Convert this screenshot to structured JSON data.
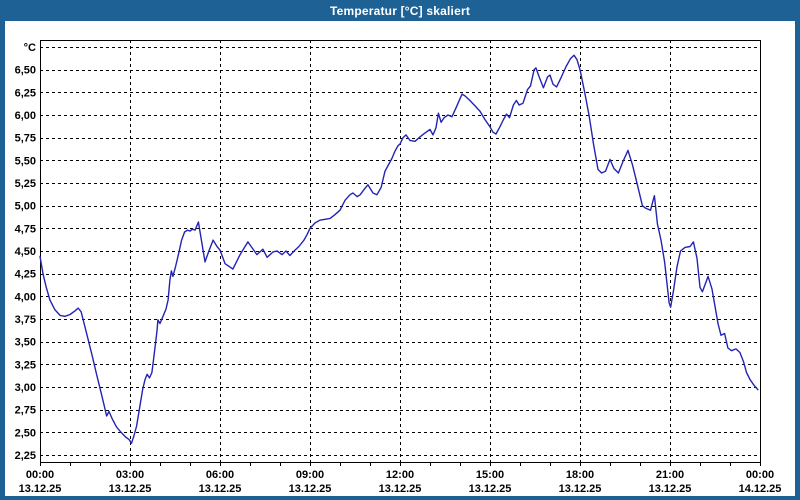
{
  "window": {
    "title": "Temperatur [°C] skaliert"
  },
  "colors": {
    "titlebar_bg": "#1e6295",
    "titlebar_text": "#ffffff",
    "window_border": "#1e6295",
    "plot_bg": "#ffffff",
    "grid": "#000000",
    "axis": "#000000",
    "label_text": "#000000",
    "series_line": "#2424b4"
  },
  "chart_data": {
    "type": "line",
    "title": "Temperatur [°C] skaliert",
    "grid": "dashed",
    "legend": "none",
    "y_axis": {
      "unit_label": "°C",
      "min": 2.25,
      "max": 6.75,
      "step": 0.25,
      "decimal_style": "comma",
      "tick_labels": [
        "6,50",
        "6,25",
        "6,00",
        "5,75",
        "5,50",
        "5,25",
        "5,00",
        "4,75",
        "4,50",
        "4,25",
        "4,00",
        "3,75",
        "3,50",
        "3,25",
        "3,00",
        "2,75",
        "2,50",
        "2,25"
      ]
    },
    "x_axis": {
      "span_hours": 24,
      "major_step_hours": 3,
      "minor_step_hours": 1,
      "ticks": [
        {
          "time": "00:00",
          "date": "13.12.25"
        },
        {
          "time": "03:00",
          "date": "13.12.25"
        },
        {
          "time": "06:00",
          "date": "13.12.25"
        },
        {
          "time": "09:00",
          "date": "13.12.25"
        },
        {
          "time": "12:00",
          "date": "13.12.25"
        },
        {
          "time": "15:00",
          "date": "13.12.25"
        },
        {
          "time": "18:00",
          "date": "13.12.25"
        },
        {
          "time": "21:00",
          "date": "13.12.25"
        },
        {
          "time": "00:00",
          "date": "14.12.25"
        }
      ]
    },
    "series": [
      {
        "name": "Temperatur",
        "color": "#2424b4",
        "points": [
          [
            0,
            4.44
          ],
          [
            0.1,
            4.25
          ],
          [
            0.2,
            4.11
          ],
          [
            0.33,
            3.96
          ],
          [
            0.5,
            3.85
          ],
          [
            0.67,
            3.79
          ],
          [
            0.83,
            3.78
          ],
          [
            1.0,
            3.8
          ],
          [
            1.17,
            3.84
          ],
          [
            1.27,
            3.87
          ],
          [
            1.37,
            3.83
          ],
          [
            1.47,
            3.7
          ],
          [
            1.6,
            3.53
          ],
          [
            1.75,
            3.33
          ],
          [
            1.9,
            3.12
          ],
          [
            2.05,
            2.92
          ],
          [
            2.15,
            2.78
          ],
          [
            2.22,
            2.68
          ],
          [
            2.3,
            2.73
          ],
          [
            2.42,
            2.64
          ],
          [
            2.55,
            2.56
          ],
          [
            2.7,
            2.5
          ],
          [
            2.85,
            2.45
          ],
          [
            2.97,
            2.42
          ],
          [
            3.05,
            2.38
          ],
          [
            3.13,
            2.46
          ],
          [
            3.22,
            2.57
          ],
          [
            3.32,
            2.77
          ],
          [
            3.42,
            2.97
          ],
          [
            3.5,
            3.08
          ],
          [
            3.57,
            3.14
          ],
          [
            3.65,
            3.1
          ],
          [
            3.73,
            3.16
          ],
          [
            3.78,
            3.29
          ],
          [
            3.85,
            3.48
          ],
          [
            3.9,
            3.62
          ],
          [
            3.93,
            3.74
          ],
          [
            4.0,
            3.7
          ],
          [
            4.1,
            3.78
          ],
          [
            4.2,
            3.86
          ],
          [
            4.27,
            3.96
          ],
          [
            4.33,
            4.18
          ],
          [
            4.38,
            4.28
          ],
          [
            4.43,
            4.22
          ],
          [
            4.52,
            4.33
          ],
          [
            4.62,
            4.47
          ],
          [
            4.72,
            4.62
          ],
          [
            4.82,
            4.71
          ],
          [
            4.92,
            4.73
          ],
          [
            5.0,
            4.72
          ],
          [
            5.08,
            4.74
          ],
          [
            5.17,
            4.73
          ],
          [
            5.28,
            4.82
          ],
          [
            5.4,
            4.58
          ],
          [
            5.5,
            4.38
          ],
          [
            5.63,
            4.5
          ],
          [
            5.77,
            4.62
          ],
          [
            5.9,
            4.55
          ],
          [
            6.0,
            4.51
          ],
          [
            6.17,
            4.36
          ],
          [
            6.43,
            4.3
          ],
          [
            6.67,
            4.46
          ],
          [
            6.93,
            4.6
          ],
          [
            7.23,
            4.46
          ],
          [
            7.43,
            4.52
          ],
          [
            7.57,
            4.43
          ],
          [
            7.77,
            4.49
          ],
          [
            7.9,
            4.5
          ],
          [
            8.07,
            4.46
          ],
          [
            8.2,
            4.5
          ],
          [
            8.33,
            4.45
          ],
          [
            8.5,
            4.51
          ],
          [
            8.63,
            4.55
          ],
          [
            8.8,
            4.62
          ],
          [
            8.9,
            4.68
          ],
          [
            9.0,
            4.75
          ],
          [
            9.17,
            4.81
          ],
          [
            9.33,
            4.84
          ],
          [
            9.5,
            4.85
          ],
          [
            9.67,
            4.86
          ],
          [
            9.83,
            4.9
          ],
          [
            10.0,
            4.95
          ],
          [
            10.17,
            5.06
          ],
          [
            10.33,
            5.12
          ],
          [
            10.43,
            5.14
          ],
          [
            10.57,
            5.1
          ],
          [
            10.67,
            5.12
          ],
          [
            10.83,
            5.19
          ],
          [
            10.93,
            5.23
          ],
          [
            11.1,
            5.14
          ],
          [
            11.23,
            5.12
          ],
          [
            11.37,
            5.2
          ],
          [
            11.5,
            5.38
          ],
          [
            11.63,
            5.46
          ],
          [
            11.73,
            5.52
          ],
          [
            11.83,
            5.6
          ],
          [
            11.93,
            5.66
          ],
          [
            12.0,
            5.68
          ],
          [
            12.1,
            5.75
          ],
          [
            12.2,
            5.78
          ],
          [
            12.33,
            5.72
          ],
          [
            12.5,
            5.71
          ],
          [
            12.67,
            5.76
          ],
          [
            12.83,
            5.8
          ],
          [
            13.0,
            5.84
          ],
          [
            13.1,
            5.78
          ],
          [
            13.2,
            5.86
          ],
          [
            13.28,
            6.02
          ],
          [
            13.37,
            5.92
          ],
          [
            13.47,
            5.97
          ],
          [
            13.6,
            6.0
          ],
          [
            13.73,
            5.98
          ],
          [
            13.87,
            6.08
          ],
          [
            14.0,
            6.18
          ],
          [
            14.07,
            6.23
          ],
          [
            14.17,
            6.21
          ],
          [
            14.33,
            6.16
          ],
          [
            14.5,
            6.1
          ],
          [
            14.67,
            6.04
          ],
          [
            14.83,
            5.95
          ],
          [
            15.0,
            5.87
          ],
          [
            15.1,
            5.81
          ],
          [
            15.2,
            5.79
          ],
          [
            15.33,
            5.87
          ],
          [
            15.45,
            5.95
          ],
          [
            15.55,
            6.01
          ],
          [
            15.65,
            5.97
          ],
          [
            15.78,
            6.11
          ],
          [
            15.88,
            6.16
          ],
          [
            15.97,
            6.11
          ],
          [
            16.1,
            6.13
          ],
          [
            16.25,
            6.28
          ],
          [
            16.35,
            6.32
          ],
          [
            16.47,
            6.5
          ],
          [
            16.53,
            6.52
          ],
          [
            16.65,
            6.41
          ],
          [
            16.78,
            6.3
          ],
          [
            16.92,
            6.42
          ],
          [
            17.0,
            6.44
          ],
          [
            17.1,
            6.34
          ],
          [
            17.22,
            6.31
          ],
          [
            17.38,
            6.42
          ],
          [
            17.53,
            6.53
          ],
          [
            17.68,
            6.62
          ],
          [
            17.8,
            6.66
          ],
          [
            17.9,
            6.61
          ],
          [
            18.0,
            6.5
          ],
          [
            18.15,
            6.26
          ],
          [
            18.3,
            6.0
          ],
          [
            18.45,
            5.68
          ],
          [
            18.6,
            5.4
          ],
          [
            18.72,
            5.36
          ],
          [
            18.85,
            5.38
          ],
          [
            19.0,
            5.51
          ],
          [
            19.13,
            5.41
          ],
          [
            19.28,
            5.36
          ],
          [
            19.45,
            5.5
          ],
          [
            19.6,
            5.61
          ],
          [
            19.75,
            5.45
          ],
          [
            19.92,
            5.22
          ],
          [
            20.08,
            5.0
          ],
          [
            20.2,
            4.97
          ],
          [
            20.35,
            4.95
          ],
          [
            20.48,
            5.11
          ],
          [
            20.58,
            4.8
          ],
          [
            20.7,
            4.62
          ],
          [
            20.82,
            4.38
          ],
          [
            20.92,
            4.08
          ],
          [
            20.97,
            3.93
          ],
          [
            21.02,
            3.88
          ],
          [
            21.12,
            4.07
          ],
          [
            21.23,
            4.32
          ],
          [
            21.35,
            4.5
          ],
          [
            21.5,
            4.54
          ],
          [
            21.67,
            4.55
          ],
          [
            21.78,
            4.6
          ],
          [
            21.9,
            4.42
          ],
          [
            22.0,
            4.1
          ],
          [
            22.08,
            4.05
          ],
          [
            22.27,
            4.22
          ],
          [
            22.4,
            4.08
          ],
          [
            22.5,
            3.89
          ],
          [
            22.6,
            3.7
          ],
          [
            22.7,
            3.57
          ],
          [
            22.82,
            3.59
          ],
          [
            22.93,
            3.43
          ],
          [
            23.05,
            3.4
          ],
          [
            23.2,
            3.42
          ],
          [
            23.33,
            3.38
          ],
          [
            23.45,
            3.28
          ],
          [
            23.55,
            3.16
          ],
          [
            23.67,
            3.08
          ],
          [
            23.8,
            3.02
          ],
          [
            23.93,
            2.97
          ]
        ]
      }
    ]
  }
}
